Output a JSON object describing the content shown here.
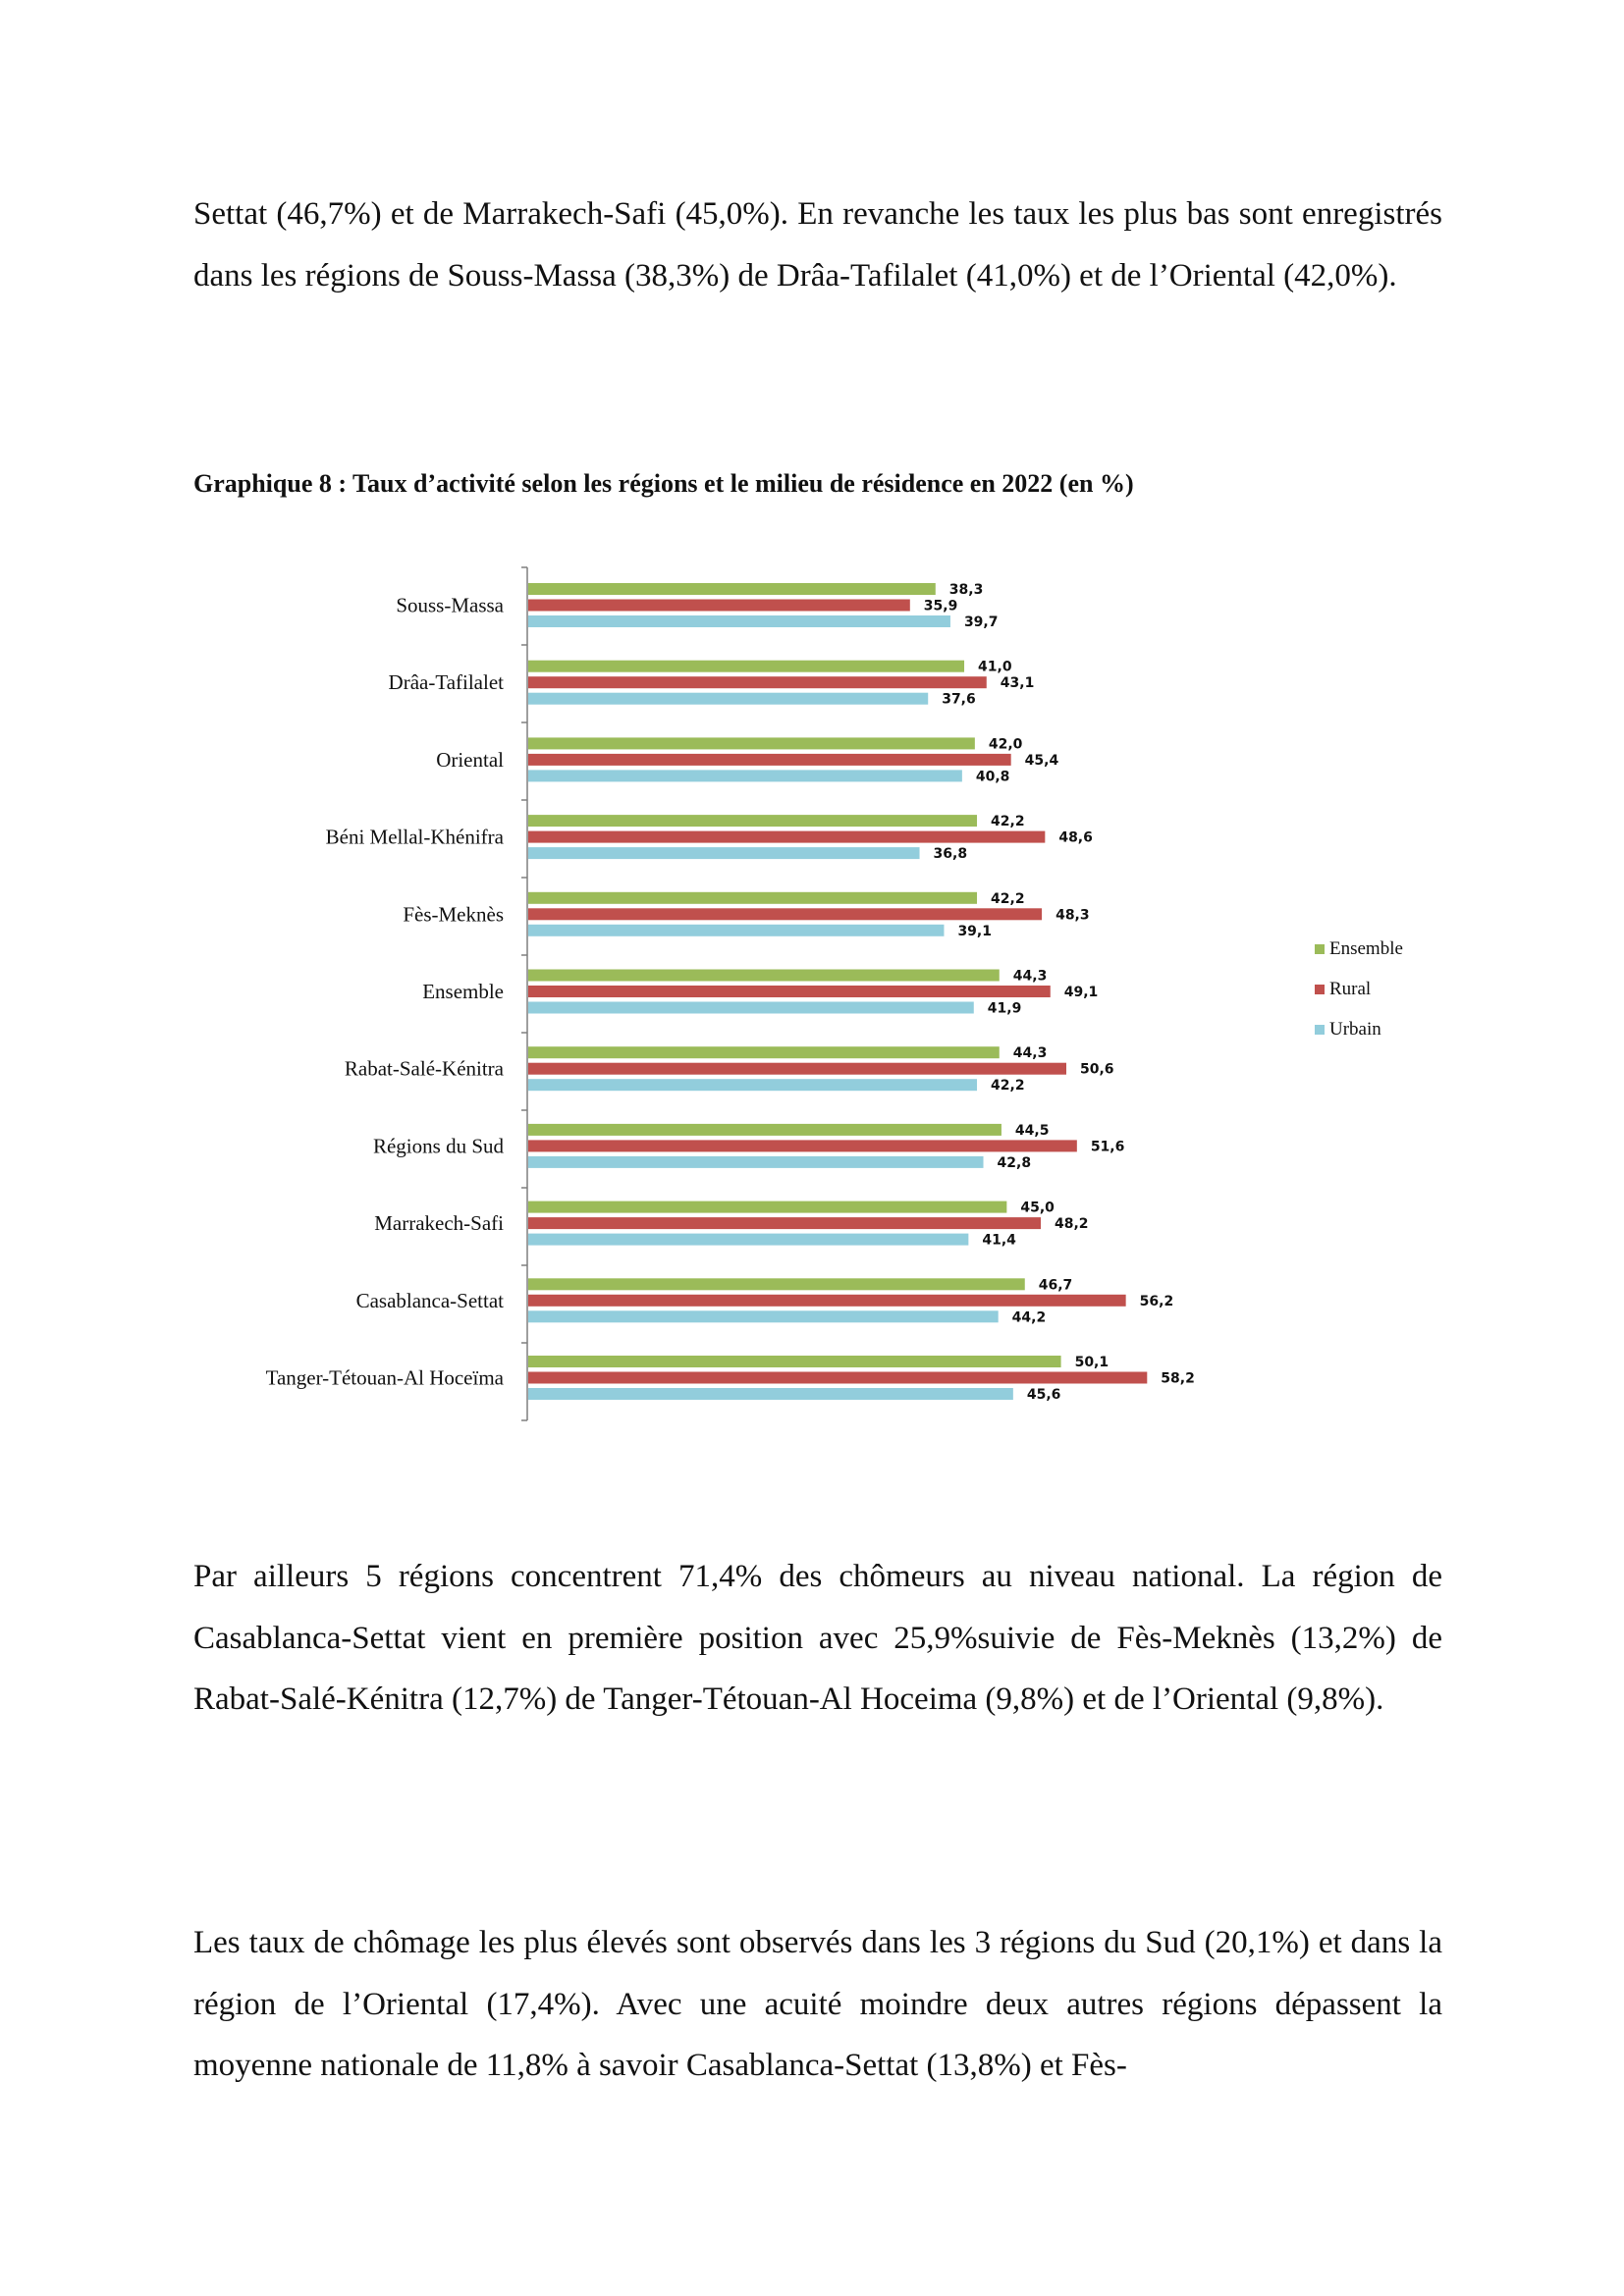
{
  "paragraphs": {
    "p1": "Settat (46,7%) et de Marrakech-Safi (45,0%). En revanche les taux les plus bas sont enregistrés dans les régions de Souss-Massa (38,3%) de Drâa-Tafilalet (41,0%) et de l’Oriental (42,0%).",
    "p2": "Par ailleurs 5 régions concentrent 71,4% des chômeurs au niveau national. La région de Casablanca-Settat vient en première position avec 25,9%suivie de Fès-Meknès (13,2%) de Rabat-Salé-Kénitra (12,7%) de Tanger-Tétouan-Al Hoceima (9,8%) et de l’Oriental (9,8%).",
    "p3": "Les taux de chômage les plus élevés sont observés dans les 3 régions du Sud (20,1%) et dans la région de l’Oriental (17,4%). Avec une acuité moindre deux autres régions dépassent la moyenne nationale de 11,8% à savoir Casablanca-Settat (13,8%) et Fès-"
  },
  "caption": "Graphique 8 : Taux d’activité selon les régions et le milieu de résidence en 2022 (en %)",
  "chart_data": {
    "type": "bar",
    "orientation": "horizontal",
    "title": "Graphique 8 : Taux d’activité selon les régions et le milieu de résidence en 2022 (en %)",
    "categories": [
      "Souss-Massa",
      "Drâa-Tafilalet",
      "Oriental",
      "Béni Mellal-Khénifra",
      "Fès-Meknès",
      "Ensemble",
      "Rabat-Salé-Kénitra",
      "Régions du Sud",
      "Marrakech-Safi",
      "Casablanca-Settat",
      "Tanger-Tétouan-Al Hoceïma"
    ],
    "series": [
      {
        "name": "Ensemble",
        "color": "#9bbb59",
        "values": [
          38.3,
          41.0,
          42.0,
          42.2,
          42.2,
          44.3,
          44.3,
          44.5,
          45.0,
          46.7,
          50.1
        ]
      },
      {
        "name": "Rural",
        "color": "#c0504d",
        "values": [
          35.9,
          43.1,
          45.4,
          48.6,
          48.3,
          49.1,
          50.6,
          51.6,
          48.2,
          56.2,
          58.2
        ]
      },
      {
        "name": "Urbain",
        "color": "#92cddc",
        "values": [
          39.7,
          37.6,
          40.8,
          36.8,
          39.1,
          41.9,
          42.2,
          42.8,
          41.4,
          44.2,
          45.6
        ]
      }
    ],
    "value_labels": [
      [
        "38,3",
        "41,0",
        "42,0",
        "42,2",
        "42,2",
        "44,3",
        "44,3",
        "44,5",
        "45,0",
        "46,7",
        "50,1"
      ],
      [
        "35,9",
        "43,1",
        "45,4",
        "48,6",
        "48,3",
        "49,1",
        "50,6",
        "51,6",
        "48,2",
        "56,2",
        "58,2"
      ],
      [
        "39,7",
        "37,6",
        "40,8",
        "36,8",
        "39,1",
        "41,9",
        "42,2",
        "42,8",
        "41,4",
        "44,2",
        "45,6"
      ]
    ],
    "xlim": [
      0,
      70
    ],
    "grid": false,
    "legend_position": "right"
  }
}
